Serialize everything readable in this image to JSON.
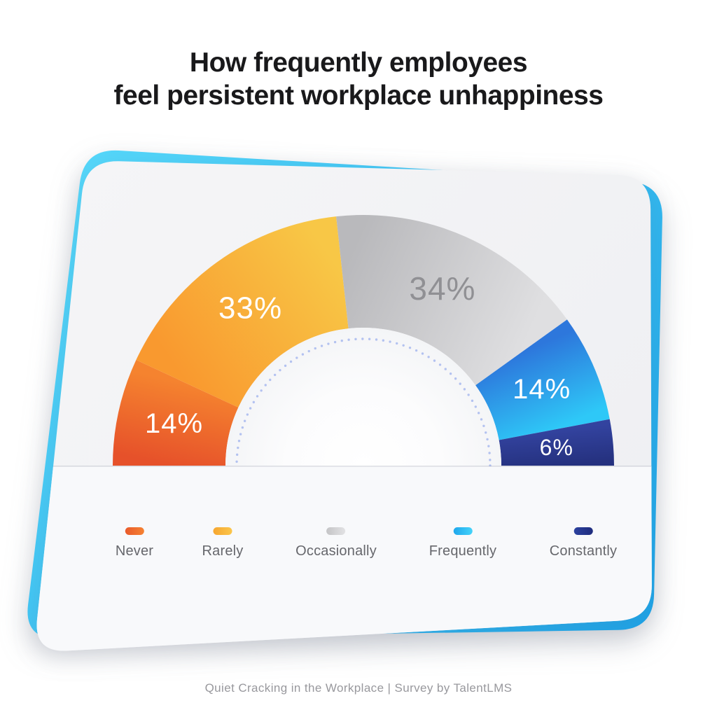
{
  "title": {
    "line1": "How frequently employees",
    "line2": "feel persistent workplace unhappiness"
  },
  "footer": {
    "text": "Quiet Cracking in the Workplace  |  Survey by TalentLMS"
  },
  "card": {
    "accent_color": "#2FBDF1",
    "accent_gradient": [
      "#55D8FB",
      "#1BA3E8"
    ],
    "face_color_top": "#F5F5F7",
    "face_color_bottom": "#EEEFF2",
    "lower_face_color": "#F8F9FB"
  },
  "chart_data": {
    "type": "pie",
    "variant": "half-donut-gauge",
    "title": "How frequently employees feel persistent workplace unhappiness",
    "categories": [
      "Never",
      "Rarely",
      "Occasionally",
      "Frequently",
      "Constantly"
    ],
    "values": [
      14,
      33,
      34,
      14,
      6
    ],
    "unit": "%",
    "data_labels": [
      "14%",
      "33%",
      "34%",
      "14%",
      "6%"
    ],
    "segment_gradients": [
      [
        "#E6512A",
        "#F5832F"
      ],
      [
        "#F9992F",
        "#F8C746"
      ],
      [
        "#B9B9BC",
        "#DFDFE1"
      ],
      [
        "#2D77DC",
        "#2EC8F7"
      ],
      [
        "#33439F",
        "#25317F"
      ]
    ],
    "data_label_colors": [
      "#FFFFFF",
      "#FFFFFF",
      "#909094",
      "#FFFFFF",
      "#FFFFFF"
    ],
    "legend_swatch_gradients": [
      [
        "#E95A2B",
        "#F58232"
      ],
      [
        "#F6A630",
        "#FBC64B"
      ],
      [
        "#C4C4C6",
        "#E2E2E4"
      ],
      [
        "#1FA7EC",
        "#45D3FA"
      ],
      [
        "#2C429F",
        "#1F2C7D"
      ]
    ],
    "legend_position": "bottom",
    "inner_dot_ring_color": "#B3C2F0",
    "angle_span_deg": 180
  }
}
